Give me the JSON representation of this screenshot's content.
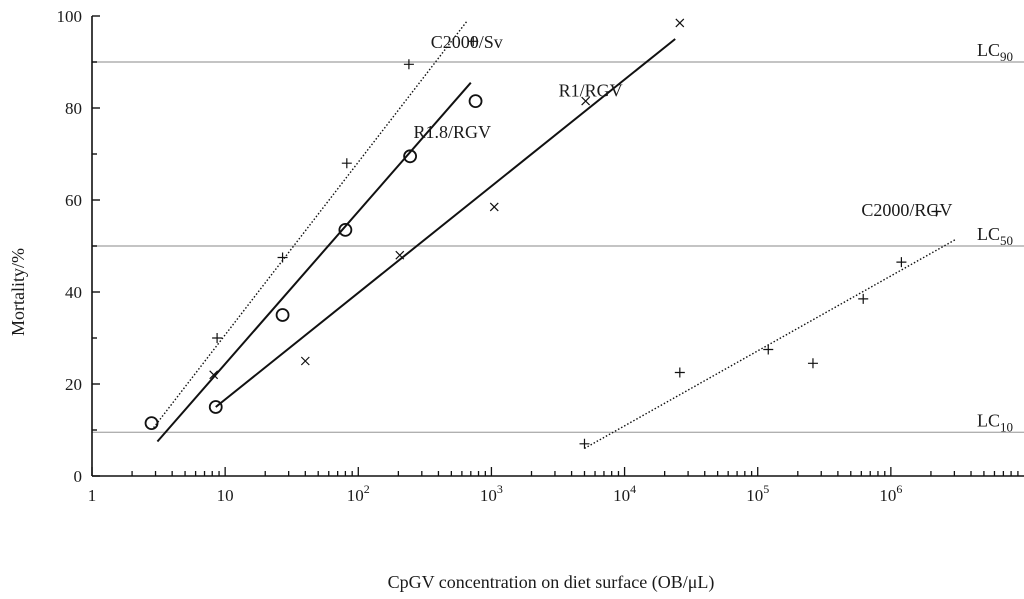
{
  "chart_data": {
    "type": "scatter",
    "xlabel": "CpGV concentration on diet surface (OB/μL)",
    "ylabel": "Mortality/%",
    "x_scale": "log",
    "xlim": [
      1,
      10000000
    ],
    "ylim": [
      0,
      100
    ],
    "x_ticks": [
      {
        "value": 1,
        "base": "1",
        "exp": ""
      },
      {
        "value": 10,
        "base": "10",
        "exp": ""
      },
      {
        "value": 100,
        "base": "10",
        "exp": "2"
      },
      {
        "value": 1000,
        "base": "10",
        "exp": "3"
      },
      {
        "value": 10000,
        "base": "10",
        "exp": "4"
      },
      {
        "value": 100000,
        "base": "10",
        "exp": "5"
      },
      {
        "value": 1000000,
        "base": "10",
        "exp": "6"
      }
    ],
    "y_ticks": [
      {
        "value": 0,
        "label": "0"
      },
      {
        "value": 20,
        "label": "20"
      },
      {
        "value": 40,
        "label": "40"
      },
      {
        "value": 60,
        "label": "60"
      },
      {
        "value": 80,
        "label": "80"
      },
      {
        "value": 100,
        "label": "100"
      }
    ],
    "reference_lines": [
      {
        "y": 90,
        "base": "LC",
        "sub": "90"
      },
      {
        "y": 50,
        "base": "LC",
        "sub": "50"
      },
      {
        "y": 9.5,
        "base": "LC",
        "sub": "10"
      }
    ],
    "series": [
      {
        "name": "C2000/Sv",
        "marker": "plus",
        "line_style": "dotted",
        "points": [
          [
            8.7,
            30
          ],
          [
            27,
            47.5
          ],
          [
            82,
            68
          ],
          [
            240,
            89.5
          ],
          [
            730,
            94.5
          ]
        ],
        "fit": [
          [
            2.9,
            10.5
          ],
          [
            660,
            99
          ]
        ],
        "label_pos": {
          "x": 350,
          "y": 93
        }
      },
      {
        "name": "R1.8/RGV",
        "marker": "circle",
        "line_style": "solid",
        "points": [
          [
            2.8,
            11.5
          ],
          [
            8.5,
            15
          ],
          [
            27,
            35
          ],
          [
            80,
            53.5
          ],
          [
            245,
            69.5
          ],
          [
            760,
            81.5
          ]
        ],
        "fit": [
          [
            3.1,
            7.5
          ],
          [
            700,
            85.5
          ]
        ],
        "label_pos": {
          "x": 260,
          "y": 73.5
        }
      },
      {
        "name": "R1/RGV",
        "marker": "x",
        "line_style": "solid",
        "points": [
          [
            8.2,
            22
          ],
          [
            40,
            25
          ],
          [
            205,
            48
          ],
          [
            1050,
            58.5
          ],
          [
            5100,
            81.5
          ],
          [
            26000,
            98.5
          ]
        ],
        "fit": [
          [
            8.5,
            15
          ],
          [
            24000,
            95
          ]
        ],
        "label_pos": {
          "x": 3200,
          "y": 82.5
        }
      },
      {
        "name": "C2000/RGV",
        "marker": "plus",
        "line_style": "dotted",
        "points": [
          [
            5000,
            7
          ],
          [
            26000,
            22.5
          ],
          [
            120000,
            27.5
          ],
          [
            260000,
            24.5
          ],
          [
            620000,
            38.5
          ],
          [
            1200000,
            46.5
          ],
          [
            2200000,
            57.5
          ]
        ],
        "fit": [
          [
            5000,
            6
          ],
          [
            3100000,
            51.5
          ]
        ],
        "label_pos": {
          "x": 600000,
          "y": 56.5
        }
      }
    ]
  }
}
